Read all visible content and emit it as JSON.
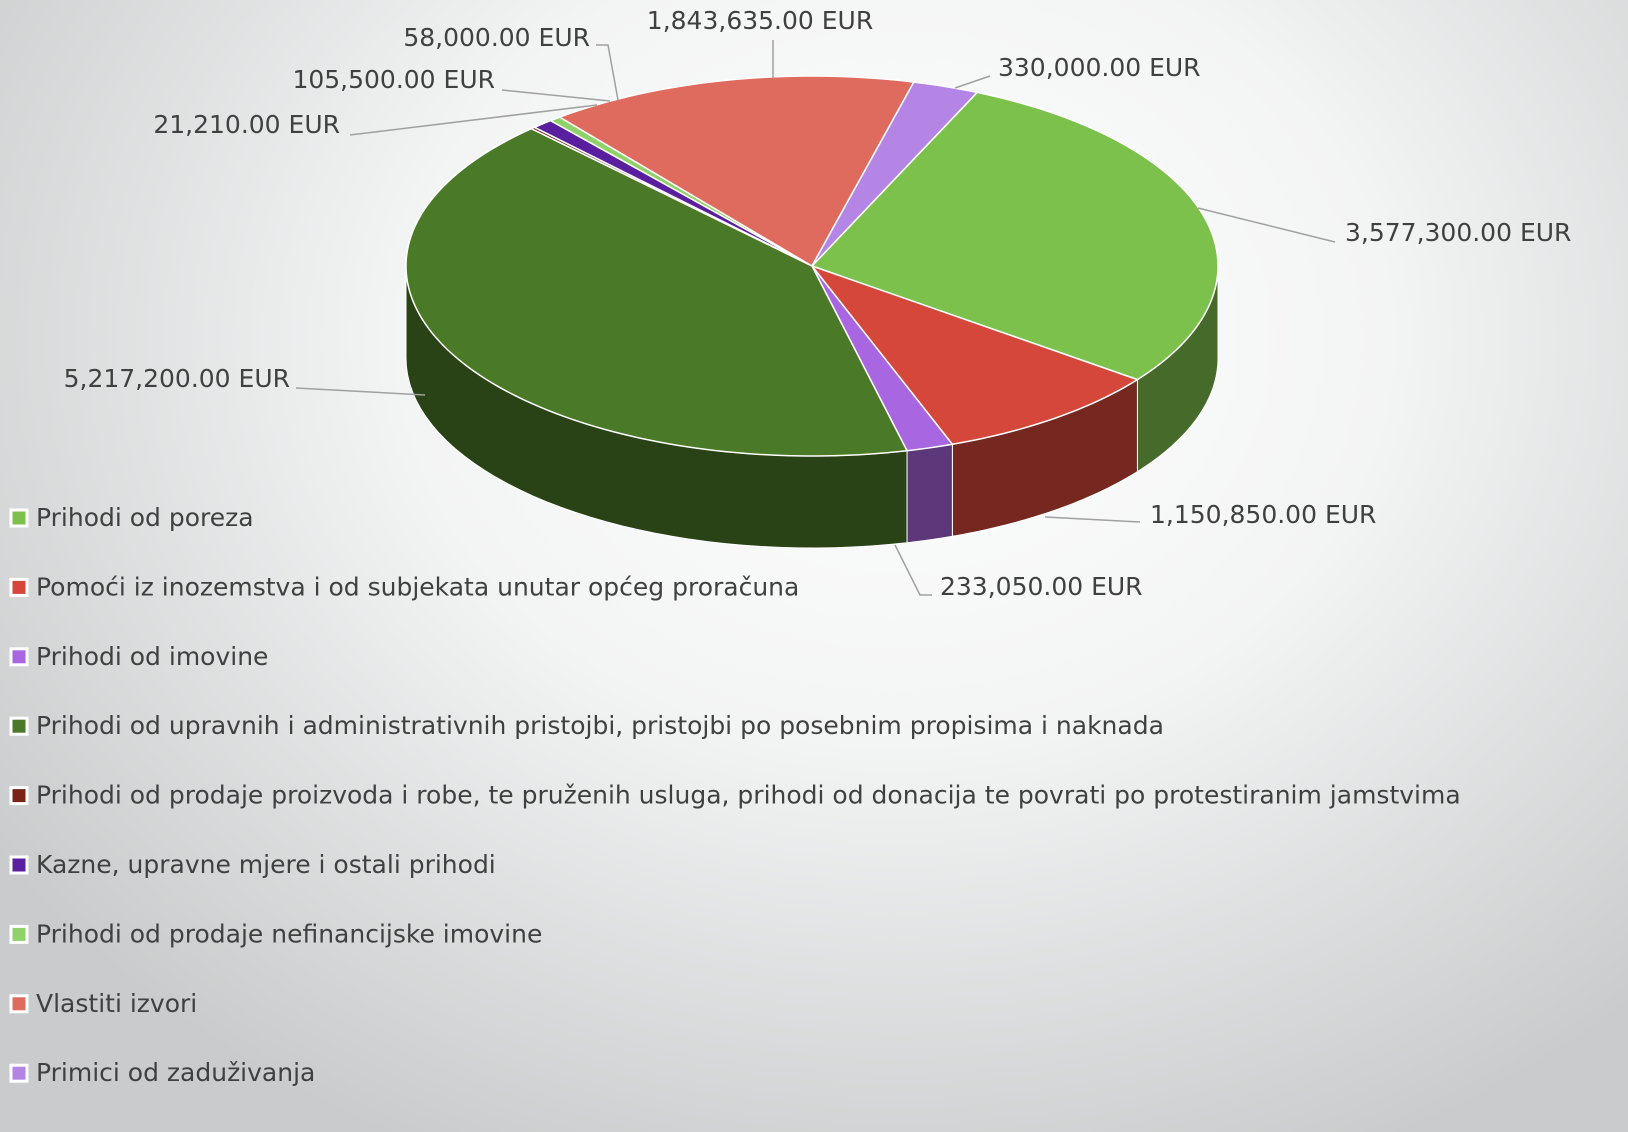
{
  "chart_data": {
    "type": "pie3d",
    "categories": [
      "Prihodi od poreza",
      "Pomoći iz inozemstva i od subjekata unutar općeg proračuna",
      "Prihodi od imovine",
      "Prihodi od upravnih i administrativnih pristojbi, pristojbi po posebnim propisima i naknada",
      "Prihodi od prodaje proizvoda i robe, te pruženih usluga, prihodi od donacija te povrati po protestiranim jamstvima",
      "Kazne, upravne mjere i ostali prihodi",
      "Prihodi od prodaje nefinancijske imovine",
      "Vlastiti izvori",
      "Primici od zaduživanja"
    ],
    "values": [
      3577300,
      1150850,
      233050,
      5217200,
      21210,
      105500,
      58000,
      1843635,
      330000
    ],
    "value_labels": [
      "3,577,300.00 EUR",
      "1,150,850.00 EUR",
      "233,050.00 EUR",
      "5,217,200.00 EUR",
      "21,210.00 EUR",
      "105,500.00 EUR",
      "58,000.00 EUR",
      "1,843,635.00 EUR",
      "330,000.00 EUR"
    ],
    "colors": [
      "#7dc14d",
      "#d4473a",
      "#a866e0",
      "#4a7a28",
      "#7a2418",
      "#5a1f9e",
      "#8fd16a",
      "#de6b5e",
      "#b585e6"
    ],
    "legend": "left"
  }
}
